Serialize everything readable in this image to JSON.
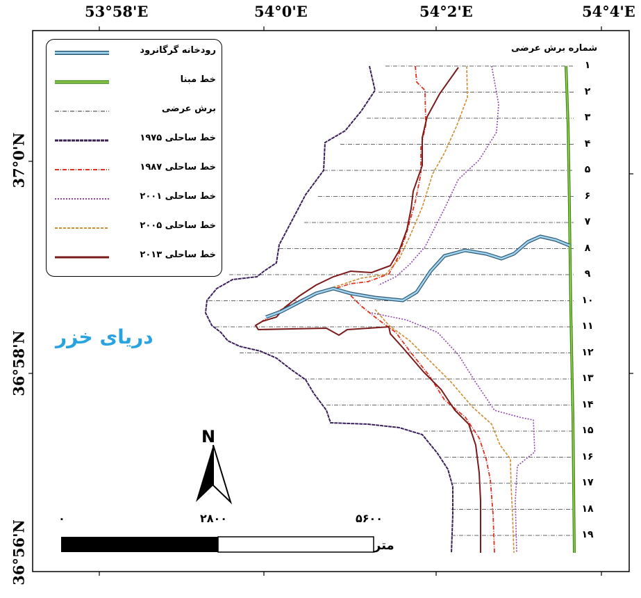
{
  "map": {
    "lon_labels": [
      "53°58'E",
      "54°0'E",
      "54°2'E",
      "54°4'E"
    ],
    "lat_labels": [
      "37°0'N",
      "36°58'N",
      "36°56'N"
    ],
    "sea_label": "دریای خزر",
    "north_label": "N"
  },
  "legend": {
    "items": [
      {
        "label": "رودخانه گرگانرود",
        "symbol": "river",
        "color": "#6fb6d9"
      },
      {
        "label": "خط مبنا",
        "symbol": "baseline",
        "color": "#3c8a10"
      },
      {
        "label": "برش عرضی",
        "symbol": "transect",
        "color": "#333333"
      },
      {
        "label": "خط ساحلی ۱۹۷۵",
        "symbol": "shore1975",
        "color": "#3a1f5c"
      },
      {
        "label": "خط ساحلی ۱۹۸۷",
        "symbol": "shore1987",
        "color": "#e0301e"
      },
      {
        "label": "خط ساحلی ۲۰۰۱",
        "symbol": "shore2001",
        "color": "#8e44ad"
      },
      {
        "label": "خط ساحلی ۲۰۰۵",
        "symbol": "shore2005",
        "color": "#d08a2e"
      },
      {
        "label": "خط ساحلی ۲۰۱۳",
        "symbol": "shore2013",
        "color": "#7a1a1a"
      }
    ]
  },
  "transects": {
    "title": "شماره برش عرضی",
    "labels": [
      "۱",
      "۲",
      "۳",
      "۴",
      "۵",
      "۶",
      "۷",
      "۸",
      "۹",
      "۱۰",
      "۱۱",
      "۱۲",
      "۱۳",
      "۱۴",
      "۱۵",
      "۱۶",
      "۱۷",
      "۱۸",
      "۱۹"
    ]
  },
  "scale_bar": {
    "labels": [
      "۰",
      "۲۸۰۰",
      "۵۶۰۰"
    ],
    "unit": "متر"
  }
}
